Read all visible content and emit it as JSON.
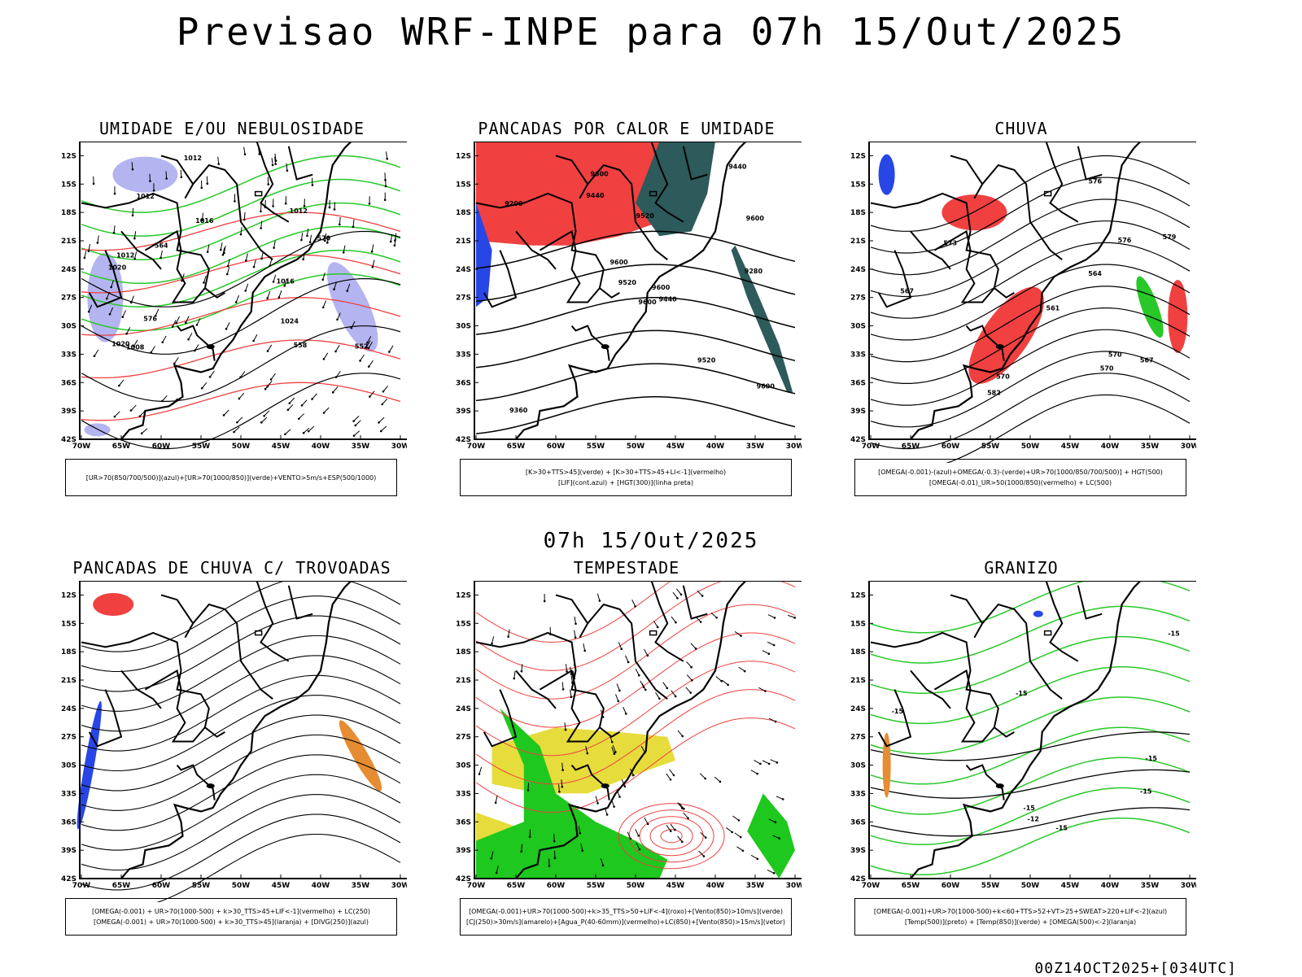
{
  "header": {
    "title": "Previsao WRF-INPE  para 07h 15/Out/2025"
  },
  "mid_time": "07h 15/Out/2025",
  "footer_stamp": "00Z14OCT2025+[034UTC]",
  "axes": {
    "lat_labels": [
      "12S",
      "15S",
      "18S",
      "21S",
      "24S",
      "27S",
      "30S",
      "33S",
      "36S",
      "39S",
      "42S"
    ],
    "lon_labels": [
      "70W",
      "65W",
      "60W",
      "55W",
      "50W",
      "45W",
      "40W",
      "35W",
      "30W"
    ]
  },
  "colors": {
    "blue_fill": "#b4b4f0",
    "green": "#28c828",
    "red": "#f04040",
    "dark_teal": "#2d5a5a",
    "orange": "#e68c32",
    "yellow": "#e6dc3c",
    "bright_green": "#1ec81e",
    "blue": "#2846e6"
  },
  "panels": [
    {
      "title": "UMIDADE E/OU NEBULOSIDADE",
      "caption_lines": [
        "[UR>70(850/700/500)](azul)+[UR>70(1000/850)](verde)+VENTO>5m/s+ESP(500/1000)"
      ],
      "labels": [
        "1012",
        "1012",
        "1016",
        "1020",
        "1016",
        "1020",
        "1024",
        "1012",
        "1008",
        "1012",
        "570",
        "576",
        "564",
        "558",
        "552"
      ]
    },
    {
      "title": "PANCADAS POR CALOR E UMIDADE",
      "caption_lines": [
        "[K>30+TTS>45](verde) + [K>30+TTS>45+LI<-1](vermelho)",
        "[LIF](cont.azul) + [HGT(300)](linha preta)"
      ],
      "labels": [
        "9600",
        "9600",
        "9600",
        "9600",
        "9600",
        "9520",
        "9600",
        "9520",
        "9440",
        "9520",
        "9440",
        "9360",
        "9280",
        "9200",
        "9440"
      ]
    },
    {
      "title": "CHUVA",
      "caption_lines": [
        "[OMEGA(-0.001)-(azul)+OMEGA(-0.3)-(verde)+UR>70(1000/850/700/500)] + HGT(500)",
        "[OMEGA(-0.01)_UR>50(1000/850)(vermelho) + LC(500)"
      ],
      "labels": [
        "582",
        "576",
        "570",
        "576",
        "573",
        "570",
        "567",
        "564",
        "561",
        "570",
        "567",
        "579"
      ]
    },
    {
      "title": "PANCADAS DE CHUVA C/ TROVOADAS",
      "caption_lines": [
        "[OMEGA(-0.001) + UR>70(1000-500) + k>30_TTS>45+LIF<-1](vermelho) + LC(250)",
        "[OMEGA(-0.001) + UR>70(1000-500) + k>30_TTS>45](laranja) + [DIVG(250)](azul)"
      ],
      "labels": []
    },
    {
      "title": "TEMPESTADE",
      "caption_lines": [
        "[OMEGA(-0.001)+UR>70(1000-500)+k>35_TTS>50+LIF<-4](roxo)+[Vento(850)>10m/s](verde)",
        "[CJ(250)>30m/s](amarelo)+[Agua_P(40-60mm)](vermelho)+LC(850)+[Vento(850)>15m/s](vetor)"
      ],
      "labels": []
    },
    {
      "title": "GRANIZO",
      "caption_lines": [
        "[OMEGA(-0.001)+UR>70(1000-500)+k<60+TTS>52+VT>25+SWEAT>220+LIF<-2](azul)",
        "[Temp(500)](preto) + [Temp(850)](verde) + [OMEGA(500)<-2](laranja)"
      ],
      "labels": [
        "-15",
        "-15",
        "-15",
        "-15",
        "-15",
        "-15",
        "-12",
        "-15"
      ]
    }
  ]
}
